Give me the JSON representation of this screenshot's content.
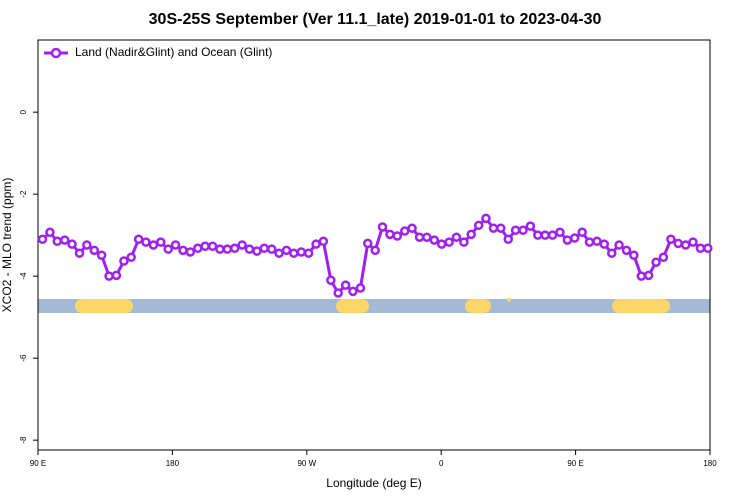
{
  "chart_data": {
    "type": "line",
    "title": "30S-25S September (Ver 11.1_late)   2019-01-01 to 2023-04-30",
    "x_label": "Longitude (deg E)",
    "y_label": "XCO2 - MLO trend (ppm)",
    "xlim": [
      90,
      540
    ],
    "ylim": [
      -8.24,
      1.76
    ],
    "xticks": [
      {
        "value": 90,
        "label": "90 E"
      },
      180,
      {
        "value": 270,
        "label": "90 W"
      },
      {
        "value": 360,
        "label": "0"
      },
      {
        "value": 450,
        "label": "90 E"
      },
      {
        "value": 540,
        "label": "180"
      }
    ],
    "yticks": [
      -8,
      -6,
      -4,
      -2,
      0
    ],
    "legend": "top-left",
    "series": [
      {
        "name": "Land (Nadir&Glint) and Ocean (Glint)",
        "color": "#a020f0",
        "x": [
          93,
          98,
          102.9,
          107.9,
          112.8,
          117.8,
          122.7,
          127.7,
          132.6,
          137.6,
          142.5,
          147.5,
          152.4,
          157.4,
          162.3,
          167.3,
          172.2,
          177.2,
          182.1,
          187.1,
          192,
          197,
          201.9,
          206.9,
          211.8,
          216.8,
          221.7,
          226.7,
          231.6,
          236.6,
          241.5,
          246.5,
          251.4,
          256.4,
          261.3,
          266.3,
          271.2,
          276.2,
          281.1,
          286.1,
          291,
          296,
          300.9,
          305.9,
          310.8,
          315.8,
          320.7,
          325.7,
          330.6,
          335.6,
          340.5,
          345.5,
          350.4,
          355.4,
          360.3,
          365.3,
          370.2,
          375.2,
          380.1,
          385.1,
          390,
          395,
          399.9,
          404.9,
          409.8,
          414.8,
          419.7,
          424.7,
          429.6,
          434.6,
          439.5,
          444.5,
          449.4,
          454.4,
          459.3,
          464.3,
          469.2,
          474.2,
          479.1,
          484.1,
          489,
          494,
          498.9,
          503.9,
          508.8,
          513.8,
          518.7,
          523.7,
          528.6,
          533.6,
          538.5
        ],
        "values": [
          -3.1,
          -2.93,
          -3.15,
          -3.12,
          -3.22,
          -3.44,
          -3.24,
          -3.37,
          -3.49,
          -4.0,
          -3.98,
          -3.63,
          -3.54,
          -3.1,
          -3.17,
          -3.24,
          -3.17,
          -3.34,
          -3.24,
          -3.37,
          -3.41,
          -3.32,
          -3.27,
          -3.27,
          -3.34,
          -3.34,
          -3.32,
          -3.24,
          -3.34,
          -3.39,
          -3.32,
          -3.34,
          -3.44,
          -3.37,
          -3.44,
          -3.41,
          -3.44,
          -3.22,
          -3.15,
          -4.1,
          -4.41,
          -4.22,
          -4.37,
          -4.29,
          -3.2,
          -3.37,
          -2.8,
          -2.98,
          -3.02,
          -2.9,
          -2.83,
          -3.05,
          -3.05,
          -3.12,
          -3.22,
          -3.17,
          -3.05,
          -3.17,
          -2.98,
          -2.76,
          -2.59,
          -2.83,
          -2.83,
          -3.1,
          -2.88,
          -2.88,
          -2.78,
          -3.0,
          -3.0,
          -3.0,
          -2.93,
          -3.12,
          -3.07,
          -2.93,
          -3.17,
          -3.15,
          -3.22,
          -3.44,
          -3.24,
          -3.37,
          -3.49,
          -4.0,
          -3.98,
          -3.66,
          -3.54,
          -3.1,
          -3.2,
          -3.24,
          -3.17,
          -3.32,
          -3.32
        ]
      }
    ]
  }
}
